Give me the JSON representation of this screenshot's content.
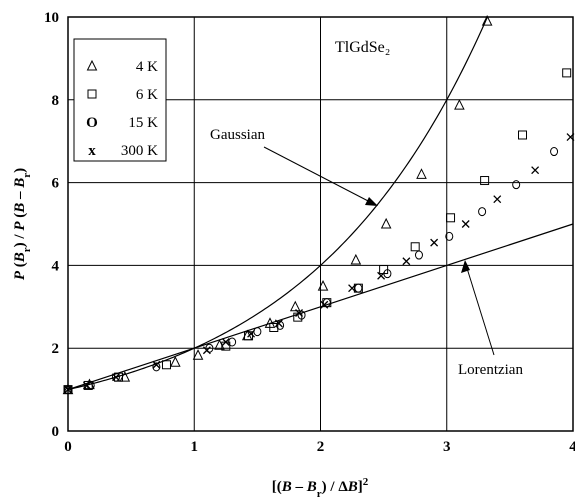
{
  "chart_data": {
    "type": "scatter",
    "title": "TlGdSe₂",
    "xlabel": "[(B − B_r) / ΔB]²",
    "ylabel": "P(B_r) / P(B − B_r)",
    "xlim": [
      0,
      4
    ],
    "ylim": [
      0,
      10
    ],
    "x_ticks": [
      "0",
      "1",
      "2",
      "3",
      "4"
    ],
    "y_ticks": [
      "0",
      "2",
      "4",
      "6",
      "8",
      "10"
    ],
    "grid": true,
    "legend_position": "top-left",
    "series": [
      {
        "name": "4 K",
        "marker": "triangle",
        "x": [
          0.0,
          0.17,
          0.45,
          0.85,
          1.03,
          1.2,
          1.42,
          1.6,
          1.8,
          2.02,
          2.28,
          2.52,
          2.8,
          3.1,
          3.32
        ],
        "y": [
          1.0,
          1.12,
          1.3,
          1.66,
          1.83,
          2.07,
          2.3,
          2.6,
          3.0,
          3.5,
          4.13,
          5.0,
          6.2,
          7.87,
          9.9
        ]
      },
      {
        "name": "6 K",
        "marker": "square",
        "x": [
          0.0,
          0.16,
          0.4,
          0.78,
          1.25,
          1.43,
          1.63,
          1.82,
          2.05,
          2.3,
          2.5,
          2.75,
          3.03,
          3.3,
          3.6,
          3.95
        ],
        "y": [
          1.0,
          1.1,
          1.3,
          1.6,
          2.05,
          2.3,
          2.5,
          2.75,
          3.1,
          3.45,
          3.9,
          4.45,
          5.15,
          6.05,
          7.15,
          8.65
        ]
      },
      {
        "name": "15 K",
        "marker": "circle",
        "x": [
          0.0,
          0.18,
          0.38,
          0.7,
          1.12,
          1.3,
          1.5,
          1.68,
          1.85,
          2.05,
          2.3,
          2.53,
          2.78,
          3.02,
          3.28,
          3.55,
          3.85
        ],
        "y": [
          1.0,
          1.1,
          1.3,
          1.55,
          2.0,
          2.15,
          2.4,
          2.55,
          2.8,
          3.1,
          3.45,
          3.8,
          4.25,
          4.7,
          5.3,
          5.95,
          6.75
        ]
      },
      {
        "name": "300 K",
        "marker": "cross",
        "x": [
          0.0,
          0.15,
          0.38,
          0.7,
          1.1,
          1.25,
          1.45,
          1.67,
          1.83,
          2.03,
          2.25,
          2.48,
          2.68,
          2.9,
          3.15,
          3.4,
          3.7,
          3.98
        ],
        "y": [
          1.0,
          1.1,
          1.3,
          1.6,
          1.95,
          2.15,
          2.35,
          2.6,
          2.85,
          3.05,
          3.45,
          3.75,
          4.1,
          4.55,
          5.0,
          5.6,
          6.3,
          7.1
        ]
      }
    ],
    "curves": [
      {
        "name": "Gaussian",
        "function": "exp(0.693*x)"
      },
      {
        "name": "Lorentzian",
        "function": "1+x"
      }
    ],
    "annotations": [
      {
        "text": "Gaussian",
        "points_to": {
          "x": 2.45,
          "y": 5.4
        }
      },
      {
        "text": "Lorentzian",
        "points_to": {
          "x": 3.2,
          "y": 4.05
        }
      }
    ]
  }
}
